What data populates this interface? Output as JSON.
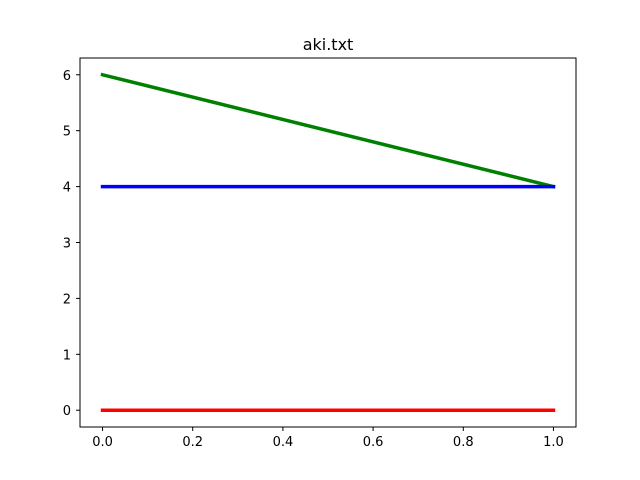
{
  "chart_data": {
    "type": "line",
    "title": "aki.txt",
    "xlabel": "",
    "ylabel": "",
    "xlim": [
      -0.05,
      1.05
    ],
    "ylim": [
      -0.3,
      6.3
    ],
    "xticks": [
      0.0,
      0.2,
      0.4,
      0.6,
      0.8,
      1.0
    ],
    "xtick_labels": [
      "0.0",
      "0.2",
      "0.4",
      "0.6",
      "0.8",
      "1.0"
    ],
    "yticks": [
      0,
      1,
      2,
      3,
      4,
      5,
      6
    ],
    "ytick_labels": [
      "0",
      "1",
      "2",
      "3",
      "4",
      "5",
      "6"
    ],
    "grid": false,
    "series": [
      {
        "x": [
          0,
          1
        ],
        "y": [
          6,
          4
        ],
        "color": "#008000"
      },
      {
        "x": [
          0,
          1
        ],
        "y": [
          4,
          4
        ],
        "color": "#0000ff"
      },
      {
        "x": [
          0,
          1
        ],
        "y": [
          0,
          0
        ],
        "color": "#ff0000"
      }
    ]
  }
}
